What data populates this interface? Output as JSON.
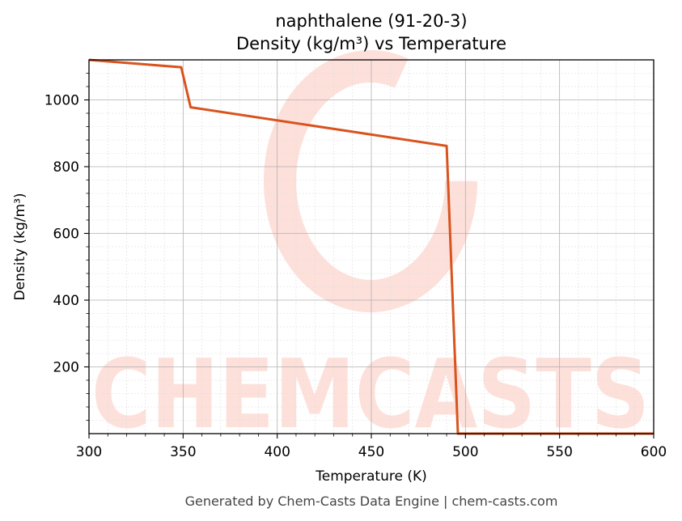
{
  "title_line1": "naphthalene (91-20-3)",
  "title_line2": "Density (kg/m³) vs Temperature",
  "footer": "Generated by Chem-Casts Data Engine | chem-casts.com",
  "watermark": "CHEMCASTS",
  "colors": {
    "line": "#d9531e",
    "watermark": "#fde0da",
    "grid_major": "#b0b0b0",
    "grid_minor": "#dddddd",
    "axis": "#000000"
  },
  "chart_data": {
    "type": "line",
    "title": "naphthalene (91-20-3)\nDensity (kg/m³) vs Temperature",
    "xlabel": "Temperature (K)",
    "ylabel": "Density (kg/m³)",
    "xlim": [
      300,
      600
    ],
    "ylim": [
      0,
      1120
    ],
    "xticks": [
      300,
      350,
      400,
      450,
      500,
      550,
      600
    ],
    "yticks": [
      200,
      400,
      600,
      800,
      1000
    ],
    "grid": true,
    "legend": "none",
    "series": [
      {
        "x": [
          300,
          349,
          354,
          490,
          496,
          600
        ],
        "y": [
          1120,
          1098,
          978,
          862,
          0,
          0
        ]
      }
    ]
  }
}
